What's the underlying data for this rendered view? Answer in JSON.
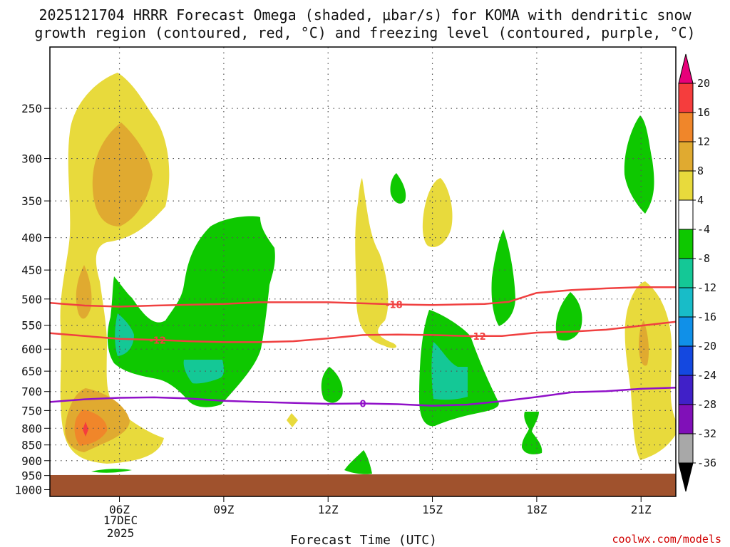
{
  "chart_data": {
    "type": "heatmap",
    "title_line1": "2025121704 HRRR Forecast Omega (shaded, μbar/s) for KOMA with dendritic snow",
    "title_line2": "growth region (contoured, red, °C) and freezing level (contoured, purple, °C)",
    "xlabel": "Forecast Time (UTC)",
    "x_ticks": [
      "06Z",
      "09Z",
      "12Z",
      "15Z",
      "18Z",
      "21Z"
    ],
    "x_tick_hours": [
      6,
      9,
      12,
      15,
      18,
      21
    ],
    "x_date_lines": [
      "17DEC",
      "2025"
    ],
    "x_range_hours": [
      4.0,
      22.0
    ],
    "y_ticks": [
      250,
      300,
      350,
      400,
      450,
      500,
      550,
      600,
      650,
      700,
      750,
      800,
      850,
      900,
      950,
      1000
    ],
    "y_range_hpa": [
      200,
      1025
    ],
    "y_scale": "log-pressure",
    "colorbar_ticks": [
      20,
      16,
      12,
      8,
      4,
      -4,
      -8,
      -12,
      -16,
      -20,
      -24,
      -28,
      -32,
      -36
    ],
    "colorbar_colors": [
      "#e8007a",
      "#f53d3d",
      "#f0862a",
      "#e0aa30",
      "#e8da3c",
      "#ffffff",
      "#0ec800",
      "#14c896",
      "#18bcc8",
      "#1090e8",
      "#1448e0",
      "#4020c8",
      "#8010b8",
      "#a8a8a8",
      "#000000"
    ],
    "contour_labels": {
      "dgz_upper": "-18",
      "dgz_lower": "-12",
      "freezing": "0"
    },
    "contours": {
      "dgz_upper_-18C": [
        [
          4.0,
          507
        ],
        [
          5.0,
          512
        ],
        [
          6.0,
          514
        ],
        [
          7.0,
          512
        ],
        [
          9.0,
          509
        ],
        [
          10.0,
          506
        ],
        [
          12.0,
          506
        ],
        [
          13.0,
          508
        ],
        [
          14.0,
          510
        ],
        [
          15.0,
          511
        ],
        [
          16.5,
          509
        ],
        [
          17.2,
          505
        ],
        [
          18.0,
          489
        ],
        [
          19.0,
          484
        ],
        [
          20.0,
          481
        ],
        [
          21.0,
          479
        ],
        [
          22.0,
          479
        ]
      ],
      "dgz_lower_-12C": [
        [
          4.0,
          566
        ],
        [
          5.0,
          572
        ],
        [
          6.0,
          578
        ],
        [
          7.0,
          580
        ],
        [
          8.0,
          583
        ],
        [
          9.0,
          585
        ],
        [
          10.0,
          585
        ],
        [
          11.0,
          583
        ],
        [
          12.0,
          577
        ],
        [
          13.0,
          570
        ],
        [
          14.0,
          569
        ],
        [
          15.0,
          570
        ],
        [
          16.0,
          572
        ],
        [
          17.0,
          572
        ],
        [
          18.0,
          565
        ],
        [
          19.0,
          563
        ],
        [
          20.0,
          559
        ],
        [
          21.0,
          551
        ],
        [
          22.0,
          543
        ]
      ],
      "freezing_0C": [
        [
          4.0,
          727
        ],
        [
          5.0,
          720
        ],
        [
          6.0,
          716
        ],
        [
          7.0,
          715
        ],
        [
          8.0,
          718
        ],
        [
          9.0,
          724
        ],
        [
          10.0,
          727
        ],
        [
          12.0,
          732
        ],
        [
          13.0,
          731
        ],
        [
          14.0,
          733
        ],
        [
          15.0,
          737
        ],
        [
          16.0,
          734
        ],
        [
          17.0,
          725
        ],
        [
          18.0,
          714
        ],
        [
          19.0,
          702
        ],
        [
          20.0,
          699
        ],
        [
          21.0,
          693
        ],
        [
          22.0,
          690
        ]
      ]
    },
    "surface_fill_color": "#a0522d",
    "contour_colors": {
      "dgz": "#f04040",
      "freezing": "#9010c8"
    },
    "credit": "coolwx.com/models"
  }
}
